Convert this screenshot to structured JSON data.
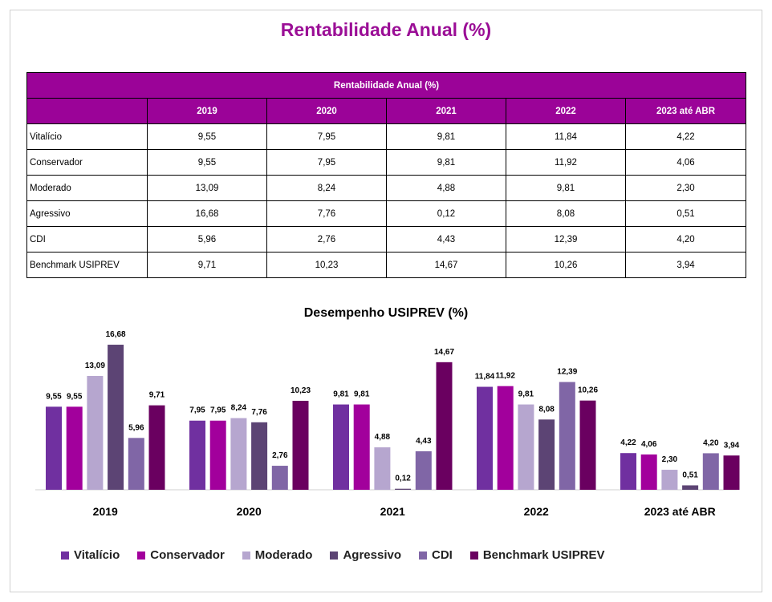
{
  "page_title": "Rentabilidade Anual (%)",
  "table": {
    "header_title": "Rentabilidade Anual (%)",
    "columns": [
      "",
      "2019",
      "2020",
      "2021",
      "2022",
      "2023 até ABR"
    ],
    "rows": [
      {
        "label": "Vitalício",
        "values": [
          "9,55",
          "7,95",
          "9,81",
          "11,84",
          "4,22"
        ]
      },
      {
        "label": "Conservador",
        "values": [
          "9,55",
          "7,95",
          "9,81",
          "11,92",
          "4,06"
        ]
      },
      {
        "label": "Moderado",
        "values": [
          "13,09",
          "8,24",
          "4,88",
          "9,81",
          "2,30"
        ]
      },
      {
        "label": "Agressivo",
        "values": [
          "16,68",
          "7,76",
          "0,12",
          "8,08",
          "0,51"
        ]
      },
      {
        "label": "CDI",
        "values": [
          "5,96",
          "2,76",
          "4,43",
          "12,39",
          "4,20"
        ]
      },
      {
        "label": "Benchmark USIPREV",
        "values": [
          "9,71",
          "10,23",
          "14,67",
          "10,26",
          "3,94"
        ]
      }
    ]
  },
  "chart_data": {
    "type": "bar",
    "title": "Desempenho USIPREV (%)",
    "categories": [
      "2019",
      "2020",
      "2021",
      "2022",
      "2023 até ABR"
    ],
    "legend_position": "bottom",
    "grid": false,
    "ylim": [
      0,
      17
    ],
    "series": [
      {
        "name": "Vitalício",
        "color": "#7030a0",
        "values": [
          9.55,
          7.95,
          9.81,
          11.84,
          4.22
        ],
        "labels": [
          "9,55",
          "7,95",
          "9,81",
          "11,84",
          "4,22"
        ]
      },
      {
        "name": "Conservador",
        "color": "#a2009c",
        "values": [
          9.55,
          7.95,
          9.81,
          11.92,
          4.06
        ],
        "labels": [
          "9,55",
          "7,95",
          "9,81",
          "11,92",
          "4,06"
        ]
      },
      {
        "name": "Moderado",
        "color": "#b6a6cf",
        "values": [
          13.09,
          8.24,
          4.88,
          9.81,
          2.3
        ],
        "labels": [
          "13,09",
          "8,24",
          "4,88",
          "9,81",
          "2,30"
        ]
      },
      {
        "name": "Agressivo",
        "color": "#5c4474",
        "values": [
          16.68,
          7.76,
          0.12,
          8.08,
          0.51
        ],
        "labels": [
          "16,68",
          "7,76",
          "0,12",
          "8,08",
          "0,51"
        ]
      },
      {
        "name": "CDI",
        "color": "#8066a6",
        "values": [
          5.96,
          2.76,
          4.43,
          12.39,
          4.2
        ],
        "labels": [
          "5,96",
          "2,76",
          "4,43",
          "12,39",
          "4,20"
        ]
      },
      {
        "name": "Benchmark USIPREV",
        "color": "#6a0060",
        "values": [
          9.71,
          10.23,
          14.67,
          10.26,
          3.94
        ],
        "labels": [
          "9,71",
          "10,23",
          "14,67",
          "10,26",
          "3,94"
        ]
      }
    ]
  }
}
